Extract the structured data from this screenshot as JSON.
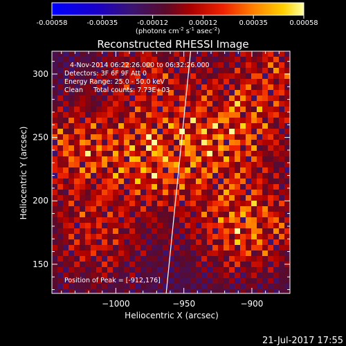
{
  "chart_data": {
    "type": "heatmap",
    "title": "Reconstructed RHESSI Image",
    "xlabel": "Heliocentric X (arcsec)",
    "ylabel": "Heliocentric Y (arcsec)",
    "xlim": [
      -1047,
      -872
    ],
    "ylim": [
      127,
      318
    ],
    "x_ticks": [
      -1000,
      -950,
      -900
    ],
    "y_ticks": [
      150,
      200,
      250,
      300
    ],
    "colorbar": {
      "ticks": [
        "-0.00058",
        "-0.00035",
        "-0.00012",
        "0.00012",
        "0.00035",
        "0.00058"
      ],
      "unit_parts": [
        "(photons cm",
        "-2",
        " s",
        "-1",
        " asec",
        "-2",
        ")"
      ],
      "range": [
        -0.00058,
        0.00058
      ]
    },
    "annotations": {
      "time_range": "4-Nov-2014 06:22:26.000 to 06:32:26.000",
      "detectors": "Detectors: 3F 6F 9F Att 0",
      "energy": "Energy Range: 25.0 - 50.0 keV",
      "clean": "Clean     Total counts: 7.73E+03",
      "peak": "Position of Peak = [-912,176]"
    },
    "peak_position": [
      -912,
      176
    ],
    "bright_regions": [
      {
        "x": -968,
        "y": 232,
        "intensity": 0.95
      },
      {
        "x": -905,
        "y": 180,
        "intensity": 1.0
      },
      {
        "x": -915,
        "y": 255,
        "intensity": 0.85
      },
      {
        "x": -1030,
        "y": 240,
        "intensity": 0.8
      },
      {
        "x": -1015,
        "y": 170,
        "intensity": 0.6
      },
      {
        "x": -975,
        "y": 300,
        "intensity": 0.55
      },
      {
        "x": -880,
        "y": 300,
        "intensity": 0.6
      }
    ],
    "limb_line": [
      [
        -963,
        127
      ],
      [
        -945,
        318
      ]
    ]
  },
  "footer_date": "21-Jul-2017 17:55"
}
